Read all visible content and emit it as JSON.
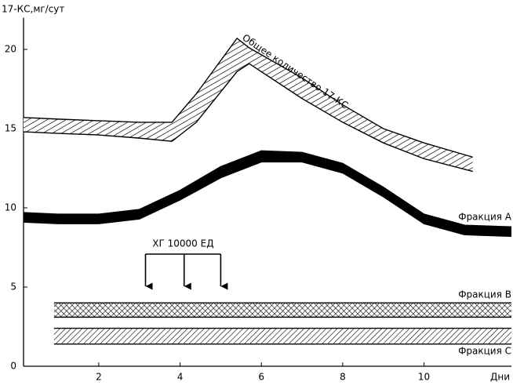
{
  "chart_data": {
    "type": "band",
    "y_label": "17-КС,мг/сут",
    "x_label": "Дни",
    "xlim": [
      0.15,
      12.15
    ],
    "xticks": [
      2,
      4,
      6,
      8,
      10
    ],
    "ylim": [
      0,
      22
    ],
    "yticks": [
      0,
      5,
      10,
      15,
      20
    ],
    "series": [
      {
        "name": "Общее количество 17-КС",
        "color": "#000000",
        "pattern": "hatch",
        "x": [
          0.15,
          1,
          2,
          3,
          3.8,
          4.4,
          5.4,
          5.7,
          7,
          8,
          9,
          10,
          11.2
        ],
        "high": [
          15.7,
          15.6,
          15.5,
          15.4,
          15.4,
          17.2,
          20.7,
          20.1,
          18.2,
          16.5,
          15.0,
          14.1,
          13.2
        ],
        "low": [
          14.8,
          14.7,
          14.6,
          14.4,
          14.2,
          15.4,
          18.6,
          19.1,
          16.9,
          15.4,
          14.1,
          13.1,
          12.3
        ]
      },
      {
        "name": "Фракция А",
        "color": "#000000",
        "pattern": "solid",
        "x": [
          0.15,
          1,
          2,
          3,
          4,
          5,
          6,
          7,
          8,
          9,
          10,
          11,
          12.15
        ],
        "high": [
          9.7,
          9.6,
          9.6,
          9.9,
          11.1,
          12.6,
          13.6,
          13.5,
          12.8,
          11.3,
          9.6,
          8.9,
          8.8
        ],
        "low": [
          9.1,
          9.0,
          9.0,
          9.3,
          10.5,
          11.9,
          12.9,
          12.9,
          12.2,
          10.7,
          9.0,
          8.3,
          8.2
        ]
      },
      {
        "name": "Фракция В",
        "color": "#000000",
        "pattern": "crosshatch",
        "x": [
          0.9,
          12.15
        ],
        "high": [
          4.0,
          4.0
        ],
        "low": [
          3.1,
          3.1
        ]
      },
      {
        "name": "Фракция С",
        "color": "#000000",
        "pattern": "diagonal",
        "x": [
          0.9,
          12.15
        ],
        "high": [
          2.4,
          2.4
        ],
        "low": [
          1.4,
          1.4
        ]
      }
    ],
    "annotation": {
      "text": "ХГ 10000 ЕД",
      "x": [
        3.15,
        4.1,
        5.0
      ]
    }
  }
}
